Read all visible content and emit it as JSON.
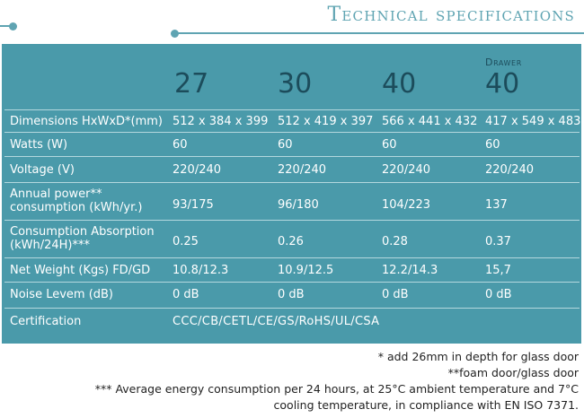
{
  "title": "Technical specifications",
  "colors": {
    "accent": "#5fa4b2",
    "panel": "#4a9aaa",
    "header_text": "#1c4c5b"
  },
  "models": [
    {
      "sublabel": "",
      "name": "27"
    },
    {
      "sublabel": "",
      "name": "30"
    },
    {
      "sublabel": "",
      "name": "40"
    },
    {
      "sublabel": "Drawer",
      "name": "40"
    }
  ],
  "rows": [
    {
      "label": "Dimensions HxWxD*(mm)",
      "values": [
        "512 x 384 x 399",
        "512 x 419 x 397",
        "566 x 441 x 432",
        "417 x 549 x 483"
      ]
    },
    {
      "label": "Watts (W)",
      "values": [
        "60",
        "60",
        "60",
        "60"
      ]
    },
    {
      "label": "Voltage (V)",
      "values": [
        "220/240",
        "220/240",
        "220/240",
        "220/240"
      ]
    },
    {
      "label": "Annual power** consumption (kWh/yr.)",
      "values": [
        "93/175",
        "96/180",
        "104/223",
        "137"
      ]
    },
    {
      "label": "Consumption Absorption (kWh/24H)***",
      "values": [
        "0.25",
        "0.26",
        "0.28",
        "0.37"
      ]
    },
    {
      "label": "Net Weight (Kgs) FD/GD",
      "values": [
        "10.8/12.3",
        "10.9/12.5",
        "12.2/14.3",
        "15,7"
      ]
    },
    {
      "label": "Noise Levem (dB)",
      "values": [
        "0 dB",
        "0 dB",
        "0 dB",
        "0 dB"
      ]
    }
  ],
  "certification": {
    "label": "Certification",
    "value": "CCC/CB/CETL/CE/GS/RoHS/UL/CSA"
  },
  "footnotes": [
    "* add 26mm in depth for glass door",
    "**foam door/glass door",
    "*** Average energy consumption per 24 hours, at 25°C ambient temperature and 7°C",
    "cooling temperature, in compliance with EN ISO 7371."
  ]
}
